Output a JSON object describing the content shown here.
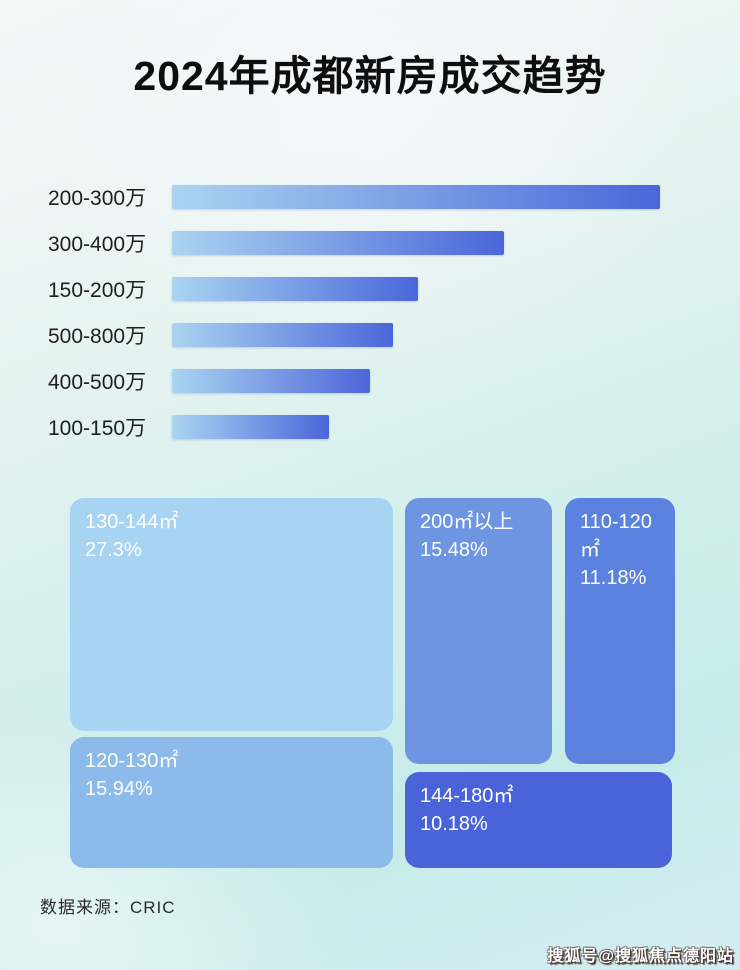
{
  "page": {
    "title": "2024年成都新房成交趋势"
  },
  "chart_data": [
    {
      "type": "bar",
      "title": "2024年成都新房成交趋势",
      "orientation": "horizontal",
      "categories": [
        "200-300万",
        "300-400万",
        "150-200万",
        "500-800万",
        "400-500万",
        "100-150万"
      ],
      "values": [
        100,
        68,
        50.4,
        45.3,
        40.6,
        32.2
      ],
      "value_note": "no numeric labels shown; values are bar lengths as % of longest bar",
      "xlabel": "",
      "ylabel": "",
      "grid": false,
      "legend": false,
      "bar_gradient": [
        "#abd4f1",
        "#4b66d9"
      ]
    },
    {
      "type": "treemap",
      "title": "",
      "items": [
        {
          "label": "130-144㎡",
          "value": "27.3%",
          "color": "#a6d4f2"
        },
        {
          "label": "200㎡以上",
          "value": "15.48%",
          "color": "#6d95e2"
        },
        {
          "label": "110-120㎡",
          "value": "11.18%",
          "color": "#5c82e0"
        },
        {
          "label": "120-130㎡",
          "value": "15.94%",
          "color": "#8cbaea"
        },
        {
          "label": "144-180㎡",
          "value": "10.18%",
          "color": "#4a63d8"
        }
      ],
      "text_color": "#ffffff"
    }
  ],
  "footer": {
    "source": "数据来源：CRIC"
  },
  "watermark": {
    "text": "搜狐号@搜狐焦点德阳站"
  }
}
